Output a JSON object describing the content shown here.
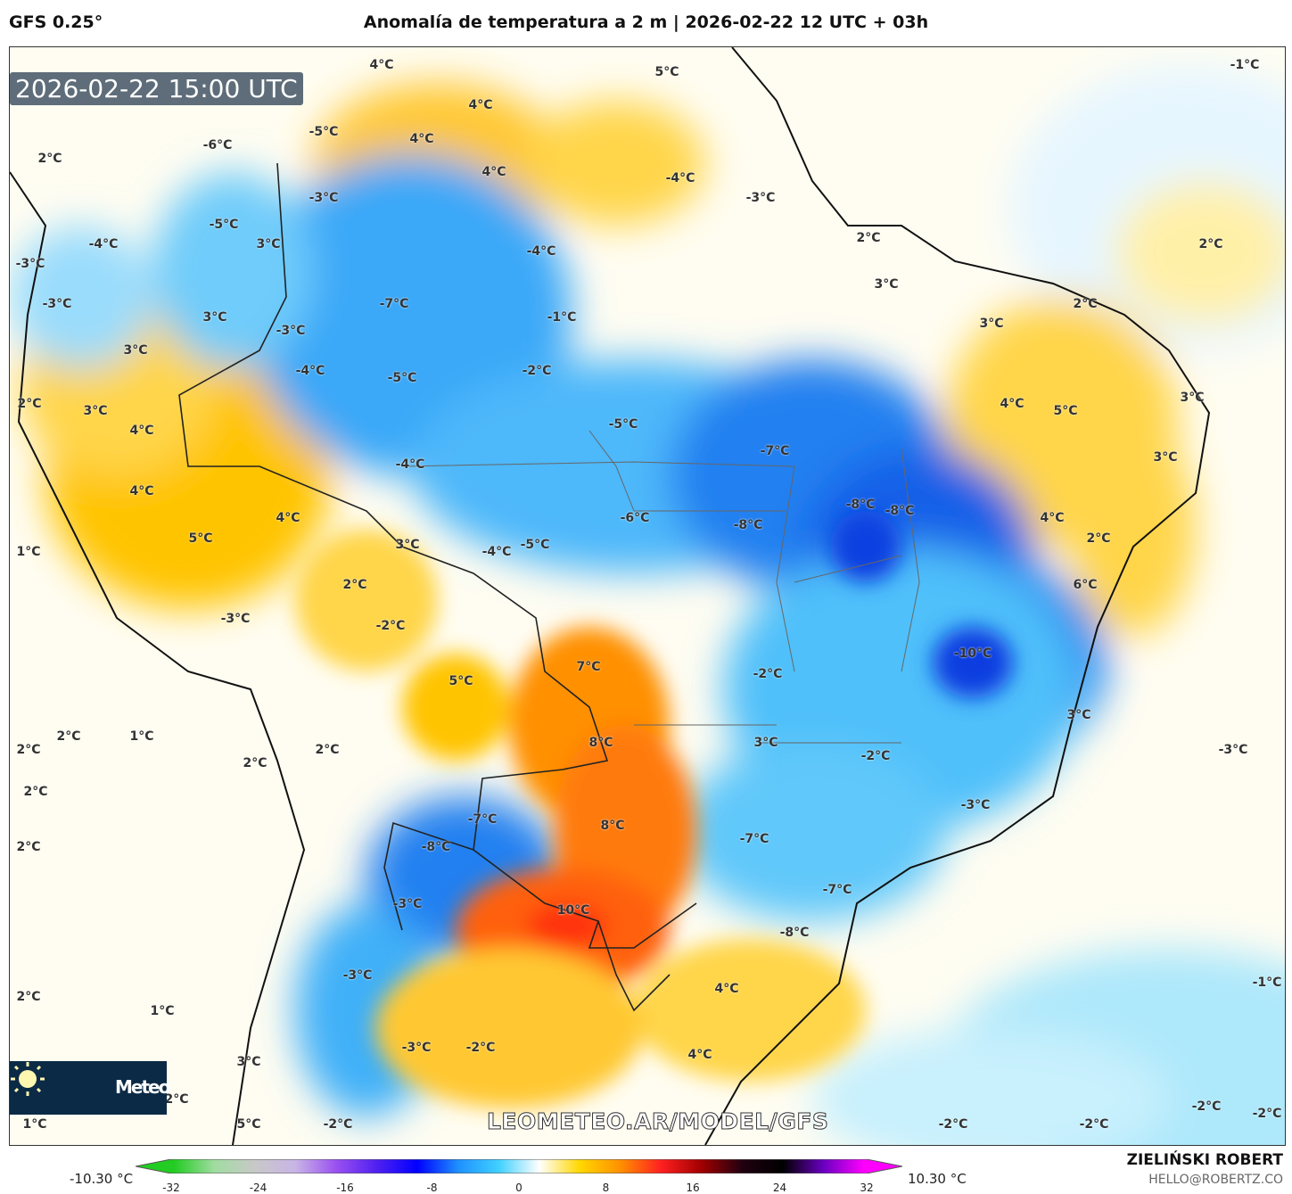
{
  "header": {
    "model": "GFS 0.25°",
    "title": "Anomalía de temperatura a 2 m | 2026-02-22 12 UTC + 03h"
  },
  "map": {
    "valid_time": "2026-02-22 15:00 UTC",
    "watermark": "LEOMETEO.AR/MODEL/GFS",
    "logo_text": "Meteo",
    "labels": [
      "4°C",
      "5°C",
      "-1°C",
      "4°C",
      "-5°C",
      "4°C",
      "-6°C",
      "2°C",
      "4°C",
      "-4°C",
      "-3°C",
      "-3°C",
      "-5°C",
      "3°C",
      "-4°C",
      "2°C",
      "2°C",
      "-4°C",
      "-3°C",
      "3°C",
      "-3°C",
      "-7°C",
      "2°C",
      "-1°C",
      "3°C",
      "3°C",
      "-3°C",
      "3°C",
      "-4°C",
      "-2°C",
      "-5°C",
      "3°C",
      "2°C",
      "4°C",
      "3°C",
      "5°C",
      "-5°C",
      "4°C",
      "-7°C",
      "3°C",
      "-4°C",
      "4°C",
      "-8°C",
      "-8°C",
      "-6°C",
      "4°C",
      "-8°C",
      "4°C",
      "5°C",
      "2°C",
      "3°C",
      "-5°C",
      "-4°C",
      "1°C",
      "6°C",
      "2°C",
      "-3°C",
      "-2°C",
      "7°C",
      "-10°C",
      "-2°C",
      "5°C",
      "3°C",
      "2°C",
      "1°C",
      "8°C",
      "3°C",
      "2°C",
      "2°C",
      "-3°C",
      "-2°C",
      "2°C",
      "2°C",
      "-3°C",
      "-7°C",
      "8°C",
      "-7°C",
      "-8°C",
      "2°C",
      "-7°C",
      "10°C",
      "-3°C",
      "-8°C",
      "-1°C",
      "-3°C",
      "4°C",
      "2°C",
      "1°C",
      "-3°C",
      "-2°C",
      "4°C",
      "3°C",
      "2°C",
      "-2°C",
      "-2°C",
      "1°C",
      "5°C",
      "-2°C",
      "-2°C",
      "-2°C"
    ]
  },
  "colorbar": {
    "min_label": "-10.30 °C",
    "max_label": "10.30 °C",
    "ticks": [
      "-32",
      "-24",
      "-16",
      "-8",
      "0",
      "8",
      "16",
      "24",
      "32"
    ],
    "colors": [
      "#22cc22",
      "#a0dca0",
      "#c8c8c8",
      "#c8b4e6",
      "#9a50f0",
      "#5020f0",
      "#0000ff",
      "#1e90ff",
      "#40d0ff",
      "#ffffff",
      "#ffd700",
      "#ff9000",
      "#ff2020",
      "#a00000",
      "#200010",
      "#000000",
      "#6a00c0",
      "#ff00ff"
    ]
  },
  "credits": {
    "author": "ZIELIŃSKI ROBERT",
    "email": "HELLO@ROBERTZ.CO"
  }
}
